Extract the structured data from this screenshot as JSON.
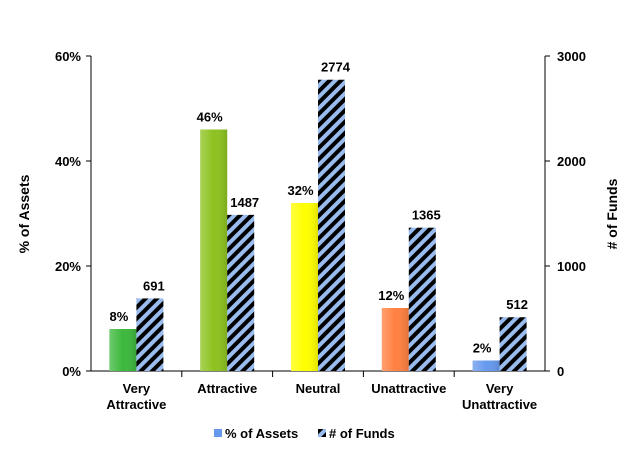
{
  "chart_data": {
    "type": "bar",
    "categories": [
      [
        "Very",
        "Attractive"
      ],
      [
        "Attractive"
      ],
      [
        "Neutral"
      ],
      [
        "Unattractive"
      ],
      [
        "Very",
        "Unattractive"
      ]
    ],
    "series": [
      {
        "name": "% of Assets",
        "axis": "left",
        "values": [
          8,
          46,
          32,
          12,
          2
        ],
        "labels": [
          "8%",
          "46%",
          "32%",
          "12%",
          "2%"
        ],
        "colors": [
          "#3CB83C",
          "#8DC21F",
          "#FFFF00",
          "#FF8040",
          "#6699EE"
        ],
        "legend_color": "#6699EE"
      },
      {
        "name": "# of Funds",
        "axis": "right",
        "values": [
          691,
          1487,
          2774,
          1365,
          512
        ],
        "labels": [
          "691",
          "1487",
          "2774",
          "1365",
          "512"
        ],
        "fill": "hatched",
        "colors": [
          "#99BBEE",
          "#000000"
        ]
      }
    ],
    "yaxis_left": {
      "title": "% of Assets",
      "range": [
        0,
        60
      ],
      "ticks": [
        "0%",
        "20%",
        "40%",
        "60%"
      ]
    },
    "yaxis_right": {
      "title": "# of Funds",
      "range": [
        0,
        3000
      ],
      "ticks": [
        "0",
        "1000",
        "2000",
        "3000"
      ]
    },
    "legend": {
      "position": "bottom",
      "items": [
        "% of Assets",
        "# of Funds"
      ]
    },
    "grid": false
  }
}
